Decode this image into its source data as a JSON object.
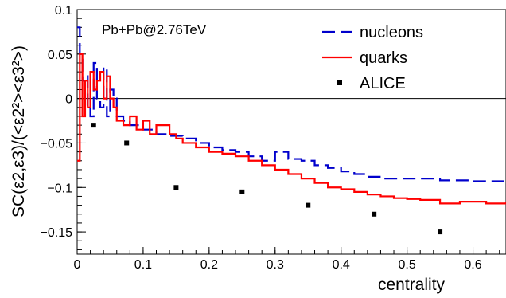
{
  "chart_data": {
    "type": "line",
    "annotation": "Pb+Pb@2.76TeV",
    "xlabel": "centrality",
    "ylabel": "SC(ε2,ε3)/(<ε2²><ε3²>)",
    "xlim": [
      0,
      0.65
    ],
    "ylim": [
      -0.175,
      0.1
    ],
    "x_ticks": [
      0,
      0.1,
      0.2,
      0.3,
      0.4,
      0.5,
      0.6
    ],
    "x_tick_labels": [
      "0",
      "0.1",
      "0.2",
      "0.3",
      "0.4",
      "0.5",
      "0.6"
    ],
    "y_ticks": [
      0.1,
      0.05,
      0,
      -0.05,
      -0.1,
      -0.15
    ],
    "y_tick_labels": [
      "0.1",
      "0.05",
      "0",
      "−0.05",
      "−0.1",
      "−0.15"
    ],
    "zero_line": true,
    "legend_position": "top-right",
    "series": [
      {
        "name": "nucleons",
        "style": "dashed-step",
        "color": "#0000cc",
        "points": [
          [
            0,
            0.08
          ],
          [
            0.004,
            0.05
          ],
          [
            0.008,
            0.02
          ],
          [
            0.012,
            -0.01
          ],
          [
            0.016,
            0.03
          ],
          [
            0.02,
            -0.02
          ],
          [
            0.025,
            0.04
          ],
          [
            0.03,
            0.0
          ],
          [
            0.035,
            -0.01
          ],
          [
            0.04,
            0.035
          ],
          [
            0.045,
            -0.02
          ],
          [
            0.05,
            0.01
          ],
          [
            0.055,
            0.0
          ],
          [
            0.06,
            -0.02
          ],
          [
            0.07,
            -0.025
          ],
          [
            0.08,
            -0.03
          ],
          [
            0.1,
            -0.035
          ],
          [
            0.12,
            -0.04
          ],
          [
            0.14,
            -0.042
          ],
          [
            0.16,
            -0.045
          ],
          [
            0.18,
            -0.05
          ],
          [
            0.2,
            -0.055
          ],
          [
            0.22,
            -0.058
          ],
          [
            0.24,
            -0.06
          ],
          [
            0.26,
            -0.065
          ],
          [
            0.28,
            -0.07
          ],
          [
            0.3,
            -0.06
          ],
          [
            0.32,
            -0.068
          ],
          [
            0.34,
            -0.07
          ],
          [
            0.36,
            -0.075
          ],
          [
            0.38,
            -0.078
          ],
          [
            0.4,
            -0.082
          ],
          [
            0.42,
            -0.085
          ],
          [
            0.44,
            -0.088
          ],
          [
            0.46,
            -0.09
          ],
          [
            0.5,
            -0.09
          ],
          [
            0.55,
            -0.092
          ],
          [
            0.6,
            -0.093
          ],
          [
            0.65,
            -0.094
          ]
        ]
      },
      {
        "name": "quarks",
        "style": "solid-step",
        "color": "#ff0000",
        "points": [
          [
            0,
            -0.07
          ],
          [
            0.004,
            0.05
          ],
          [
            0.008,
            -0.02
          ],
          [
            0.012,
            0.02
          ],
          [
            0.016,
            -0.01
          ],
          [
            0.02,
            0.03
          ],
          [
            0.025,
            0.01
          ],
          [
            0.03,
            0.02
          ],
          [
            0.035,
            0.03
          ],
          [
            0.04,
            0.0
          ],
          [
            0.045,
            0.025
          ],
          [
            0.05,
            0.0
          ],
          [
            0.055,
            -0.01
          ],
          [
            0.06,
            -0.025
          ],
          [
            0.07,
            -0.03
          ],
          [
            0.08,
            -0.02
          ],
          [
            0.09,
            -0.035
          ],
          [
            0.1,
            -0.025
          ],
          [
            0.11,
            -0.04
          ],
          [
            0.12,
            -0.03
          ],
          [
            0.14,
            -0.04
          ],
          [
            0.15,
            -0.045
          ],
          [
            0.16,
            -0.05
          ],
          [
            0.18,
            -0.055
          ],
          [
            0.2,
            -0.06
          ],
          [
            0.22,
            -0.062
          ],
          [
            0.24,
            -0.065
          ],
          [
            0.26,
            -0.07
          ],
          [
            0.28,
            -0.075
          ],
          [
            0.3,
            -0.08
          ],
          [
            0.32,
            -0.085
          ],
          [
            0.34,
            -0.09
          ],
          [
            0.36,
            -0.095
          ],
          [
            0.38,
            -0.1
          ],
          [
            0.4,
            -0.102
          ],
          [
            0.42,
            -0.105
          ],
          [
            0.44,
            -0.108
          ],
          [
            0.46,
            -0.11
          ],
          [
            0.48,
            -0.112
          ],
          [
            0.5,
            -0.113
          ],
          [
            0.52,
            -0.114
          ],
          [
            0.55,
            -0.118
          ],
          [
            0.58,
            -0.116
          ],
          [
            0.62,
            -0.118
          ],
          [
            0.65,
            -0.116
          ]
        ]
      },
      {
        "name": "ALICE",
        "style": "markers",
        "color": "#000000",
        "points": [
          [
            0.025,
            -0.03
          ],
          [
            0.075,
            -0.05
          ],
          [
            0.15,
            -0.1
          ],
          [
            0.25,
            -0.105
          ],
          [
            0.35,
            -0.12
          ],
          [
            0.45,
            -0.13
          ],
          [
            0.55,
            -0.15
          ]
        ]
      }
    ]
  }
}
